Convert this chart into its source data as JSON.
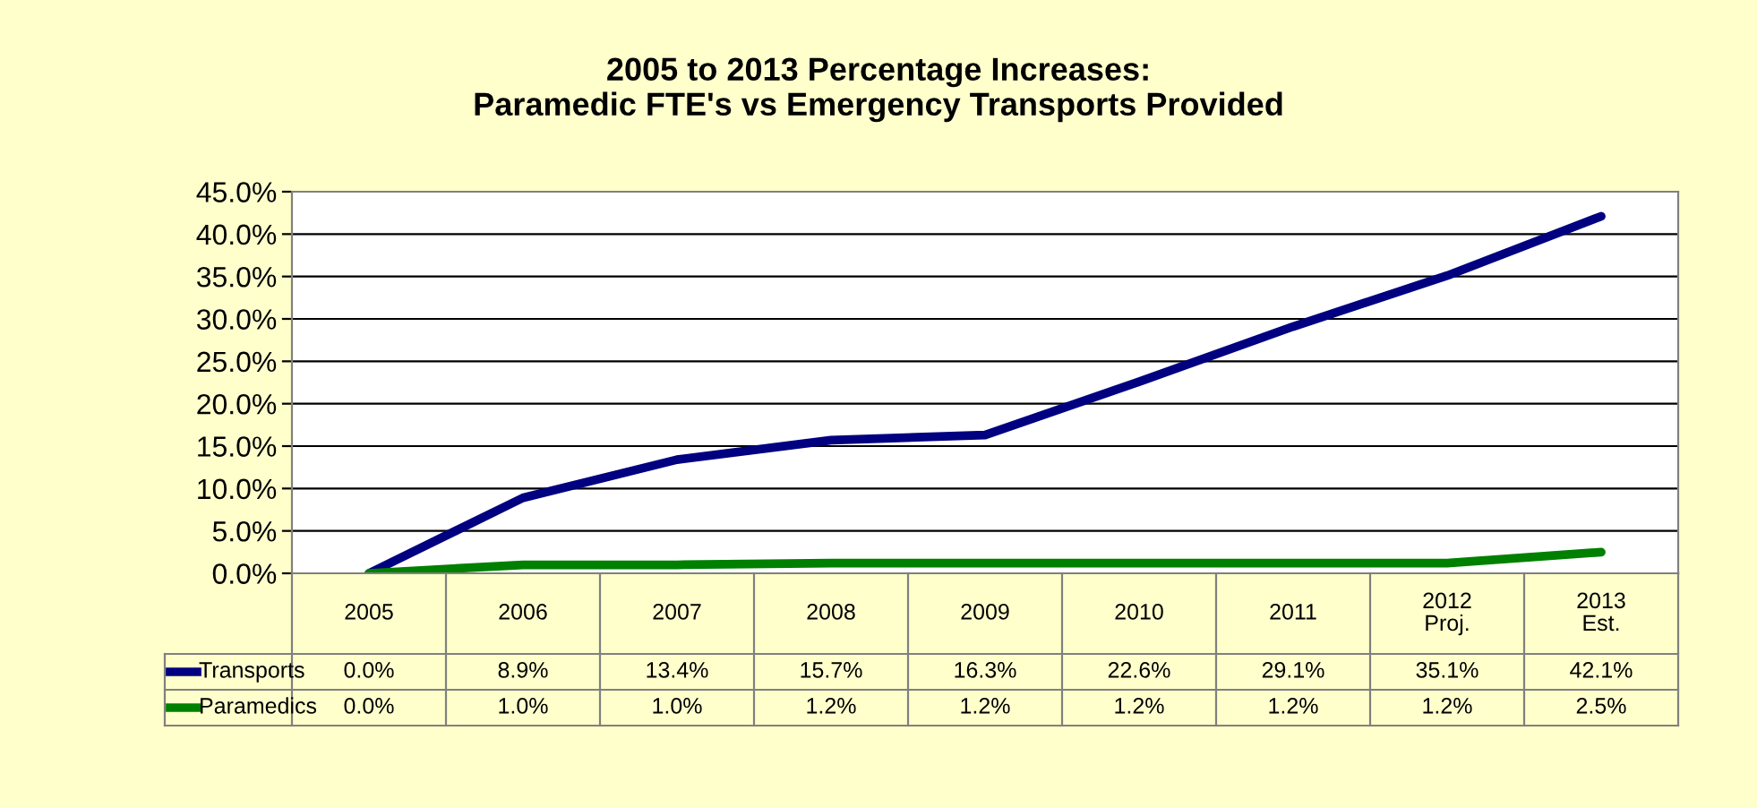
{
  "chart_data": {
    "type": "line",
    "title": "2005 to 2013 Percentage Increases:\nParamedic FTE's vs Emergency Transports Provided",
    "categories": [
      "2005",
      "2006",
      "2007",
      "2008",
      "2009",
      "2010",
      "2011",
      "2012\nProj.",
      "2013\nEst."
    ],
    "series": [
      {
        "name": "Transports",
        "color": "#000080",
        "values": [
          0.0,
          8.9,
          13.4,
          15.7,
          16.3,
          22.6,
          29.1,
          35.1,
          42.1
        ],
        "value_labels": [
          "0.0%",
          "8.9%",
          "13.4%",
          "15.7%",
          "16.3%",
          "22.6%",
          "29.1%",
          "35.1%",
          "42.1%"
        ]
      },
      {
        "name": "Paramedics",
        "color": "#008000",
        "values": [
          0.0,
          1.0,
          1.0,
          1.2,
          1.2,
          1.2,
          1.2,
          1.2,
          2.5
        ],
        "value_labels": [
          "0.0%",
          "1.0%",
          "1.0%",
          "1.2%",
          "1.2%",
          "1.2%",
          "1.2%",
          "1.2%",
          "2.5%"
        ]
      }
    ],
    "ylim": [
      0,
      45
    ],
    "yticks": [
      {
        "value": 0,
        "label": "0.0%"
      },
      {
        "value": 5,
        "label": "5.0%"
      },
      {
        "value": 10,
        "label": "10.0%"
      },
      {
        "value": 15,
        "label": "15.0%"
      },
      {
        "value": 20,
        "label": "20.0%"
      },
      {
        "value": 25,
        "label": "25.0%"
      },
      {
        "value": 30,
        "label": "30.0%"
      },
      {
        "value": 35,
        "label": "35.0%"
      },
      {
        "value": 40,
        "label": "40.0%"
      },
      {
        "value": 45,
        "label": "45.0%"
      }
    ],
    "grid": "y",
    "legend": "bottom left",
    "marker": "none",
    "line_style": "solid"
  }
}
